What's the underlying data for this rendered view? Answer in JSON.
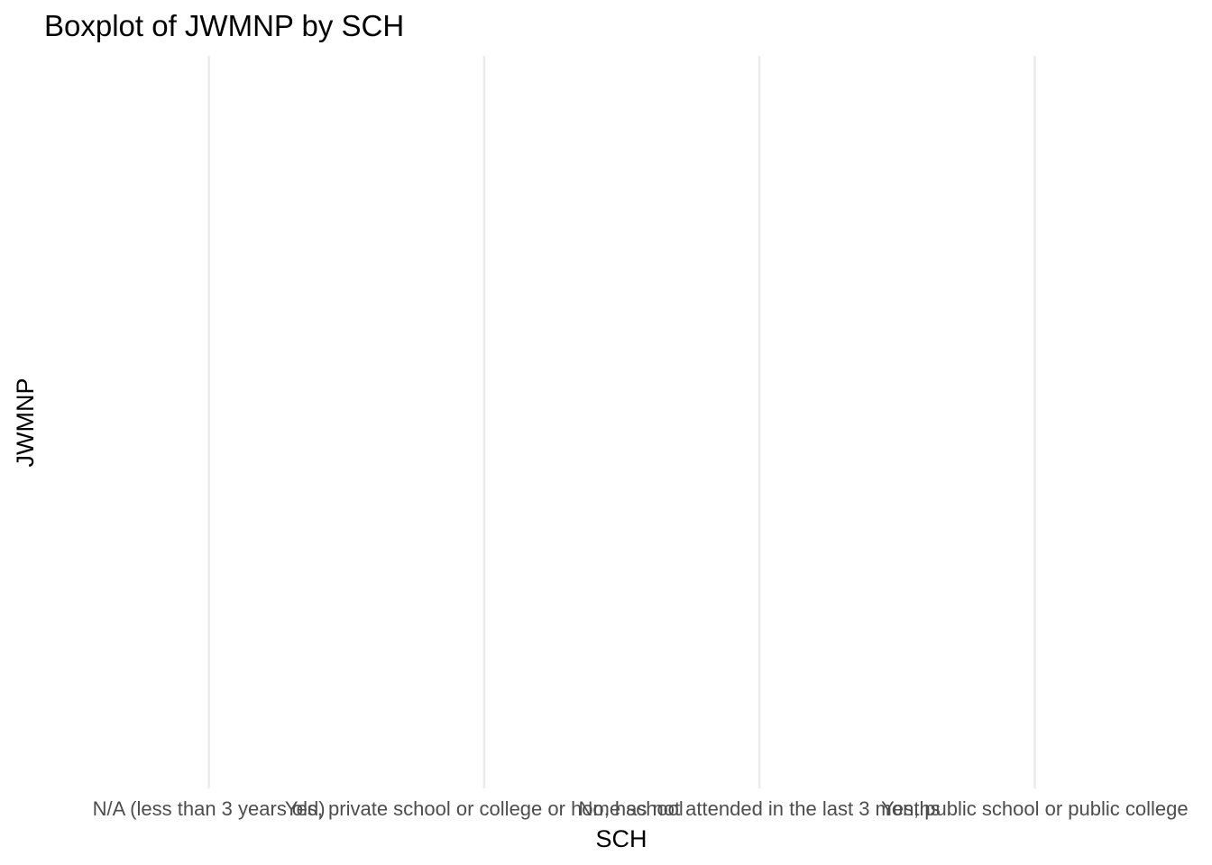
{
  "chart_data": {
    "type": "boxplot",
    "title": "Boxplot of JWMNP by SCH",
    "xlabel": "SCH",
    "ylabel": "JWMNP",
    "categories": [
      "N/A (less than 3 years old)",
      "Yes, private school or college or home school",
      "No, has not attended in the last 3 months",
      "Yes, public school or public college"
    ],
    "series": [],
    "grid": {
      "major_x": true,
      "major_y": false
    },
    "legend": "none"
  }
}
